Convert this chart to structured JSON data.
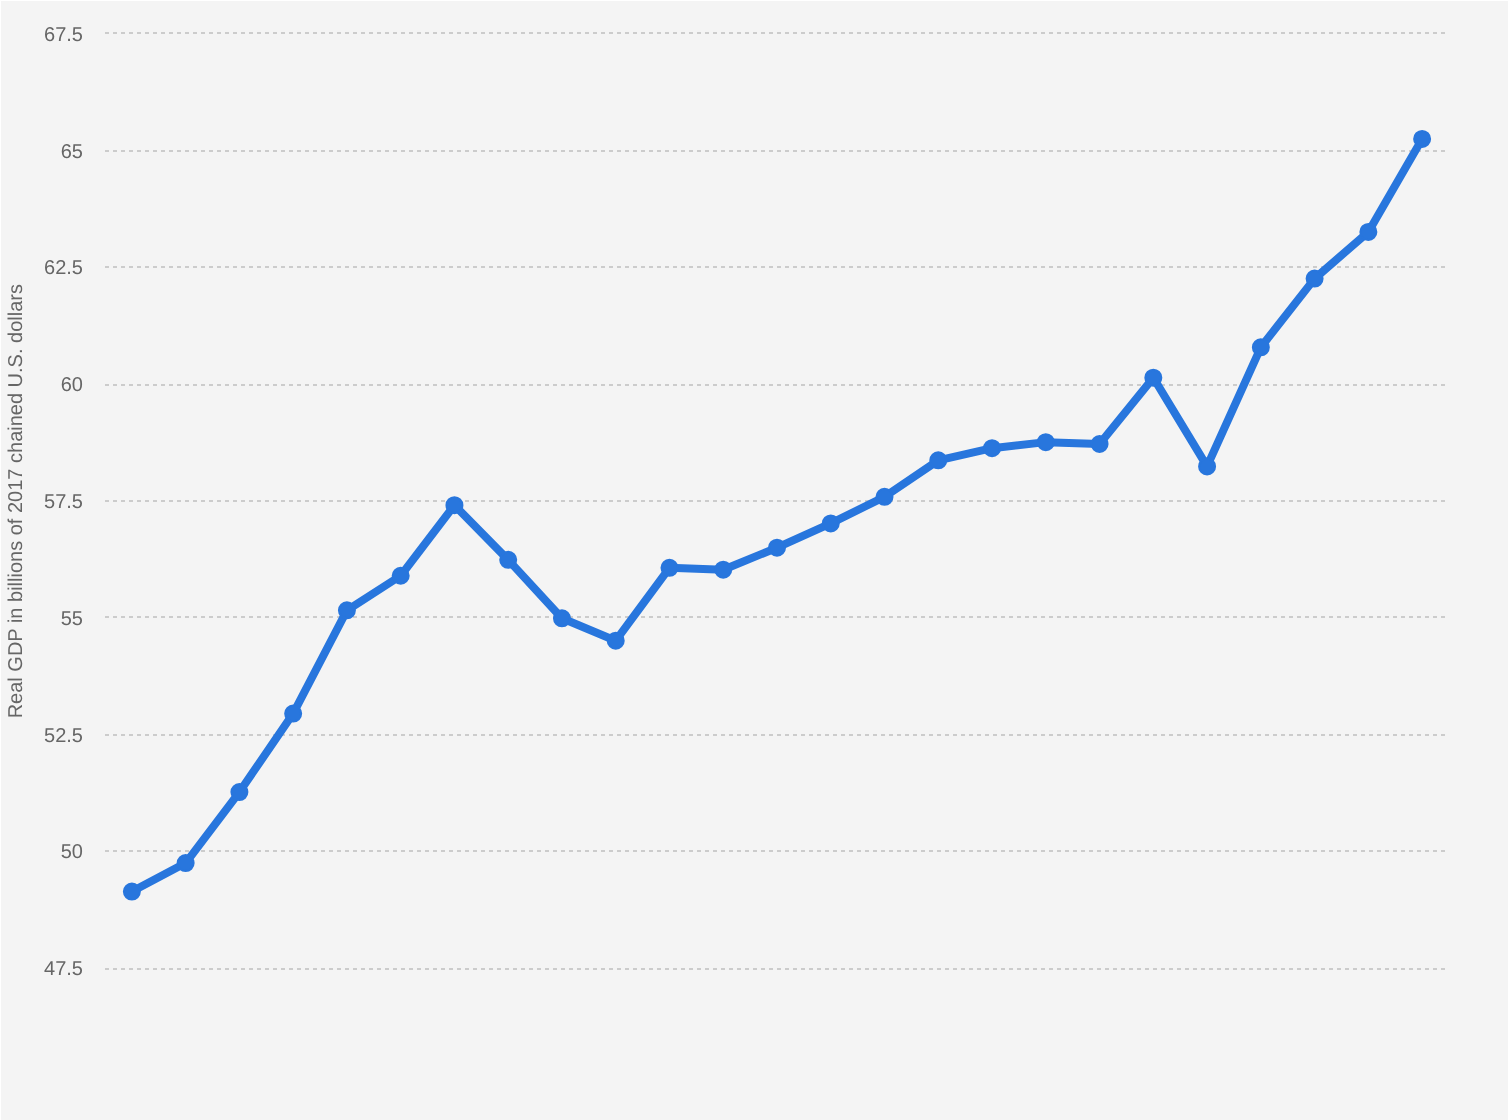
{
  "chart_data": {
    "type": "line",
    "ylabel": "Real GDP in billions of 2017 chained U.S. dollars",
    "categories": [
      null,
      null,
      null,
      null,
      null,
      null,
      null,
      null,
      null,
      null,
      null,
      null,
      null,
      null,
      null,
      null,
      null,
      null,
      null,
      null,
      null,
      null,
      null,
      null,
      null
    ],
    "series": [
      {
        "color": "#2876dd",
        "values": [
          49.14,
          49.75,
          51.27,
          52.95,
          55.16,
          55.9,
          57.41,
          56.24,
          54.99,
          54.51,
          56.07,
          56.03,
          56.5,
          57.02,
          57.59,
          58.37,
          58.63,
          58.76,
          58.72,
          60.14,
          58.24,
          60.79,
          62.26,
          63.26,
          65.25
        ]
      }
    ],
    "ylim": [
      47.5,
      67.5
    ],
    "yticks": [
      47.5,
      50,
      52.5,
      55,
      57.5,
      60,
      62.5,
      65,
      67.5
    ],
    "grid": "y",
    "tick_labels": "y",
    "marker": "circle",
    "line_style": "solid"
  }
}
